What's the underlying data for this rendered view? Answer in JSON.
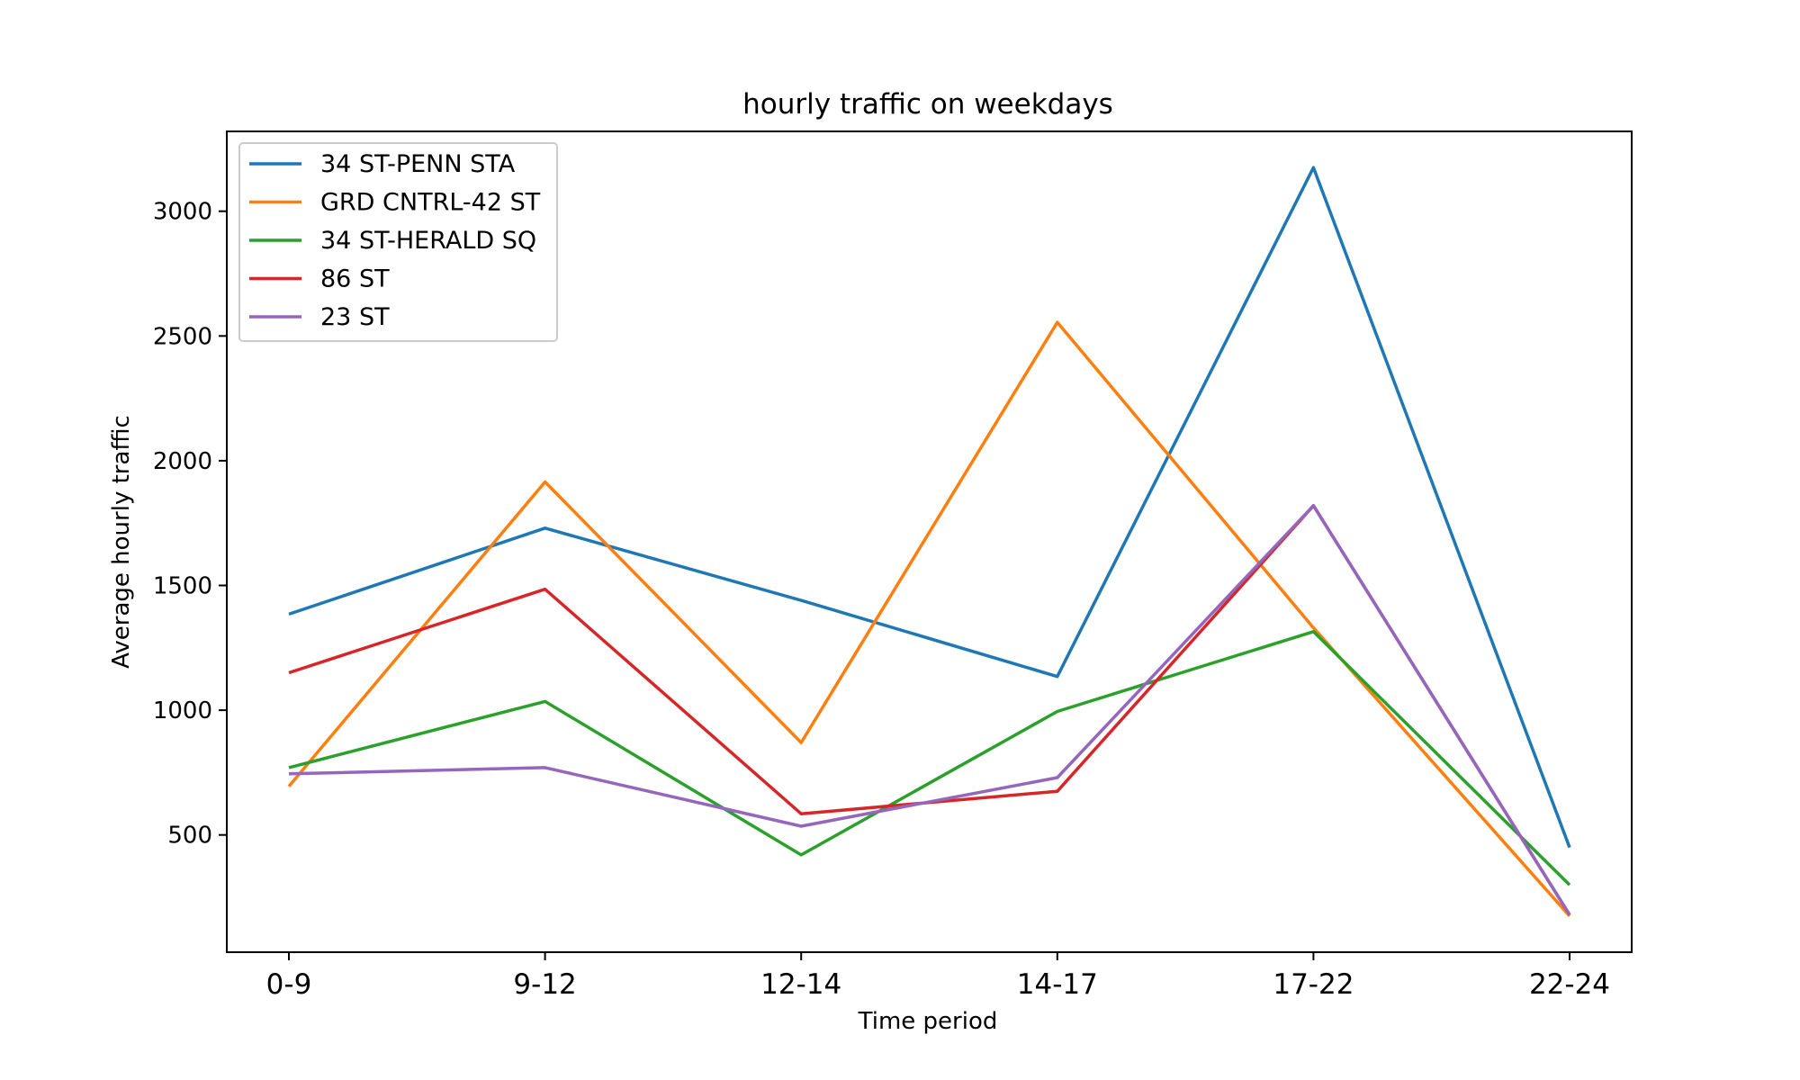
{
  "chart_data": {
    "type": "line",
    "title": "hourly traffic on weekdays",
    "xlabel": "Time period",
    "ylabel": "Average hourly traffic",
    "categories": [
      "0-9",
      "9-12",
      "12-14",
      "14-17",
      "17-22",
      "22-24"
    ],
    "yticks": [
      500,
      1000,
      1500,
      2000,
      2500,
      3000
    ],
    "ylim": [
      30,
      3320
    ],
    "grid": false,
    "legend_position": "upper-left",
    "series": [
      {
        "name": "34 ST-PENN STA",
        "color": "#1f77b4",
        "values": [
          1385,
          1730,
          1440,
          1135,
          3175,
          450
        ]
      },
      {
        "name": "GRD CNTRL-42 ST",
        "color": "#ff7f0e",
        "values": [
          695,
          1915,
          870,
          2555,
          1330,
          175
        ]
      },
      {
        "name": "34 ST-HERALD SQ",
        "color": "#2ca02c",
        "values": [
          770,
          1035,
          420,
          995,
          1315,
          300
        ]
      },
      {
        "name": "86 ST",
        "color": "#d62728",
        "values": [
          1150,
          1485,
          585,
          675,
          1820,
          180
        ]
      },
      {
        "name": "23 ST",
        "color": "#9467bd",
        "values": [
          745,
          770,
          535,
          730,
          1820,
          180
        ]
      }
    ]
  }
}
